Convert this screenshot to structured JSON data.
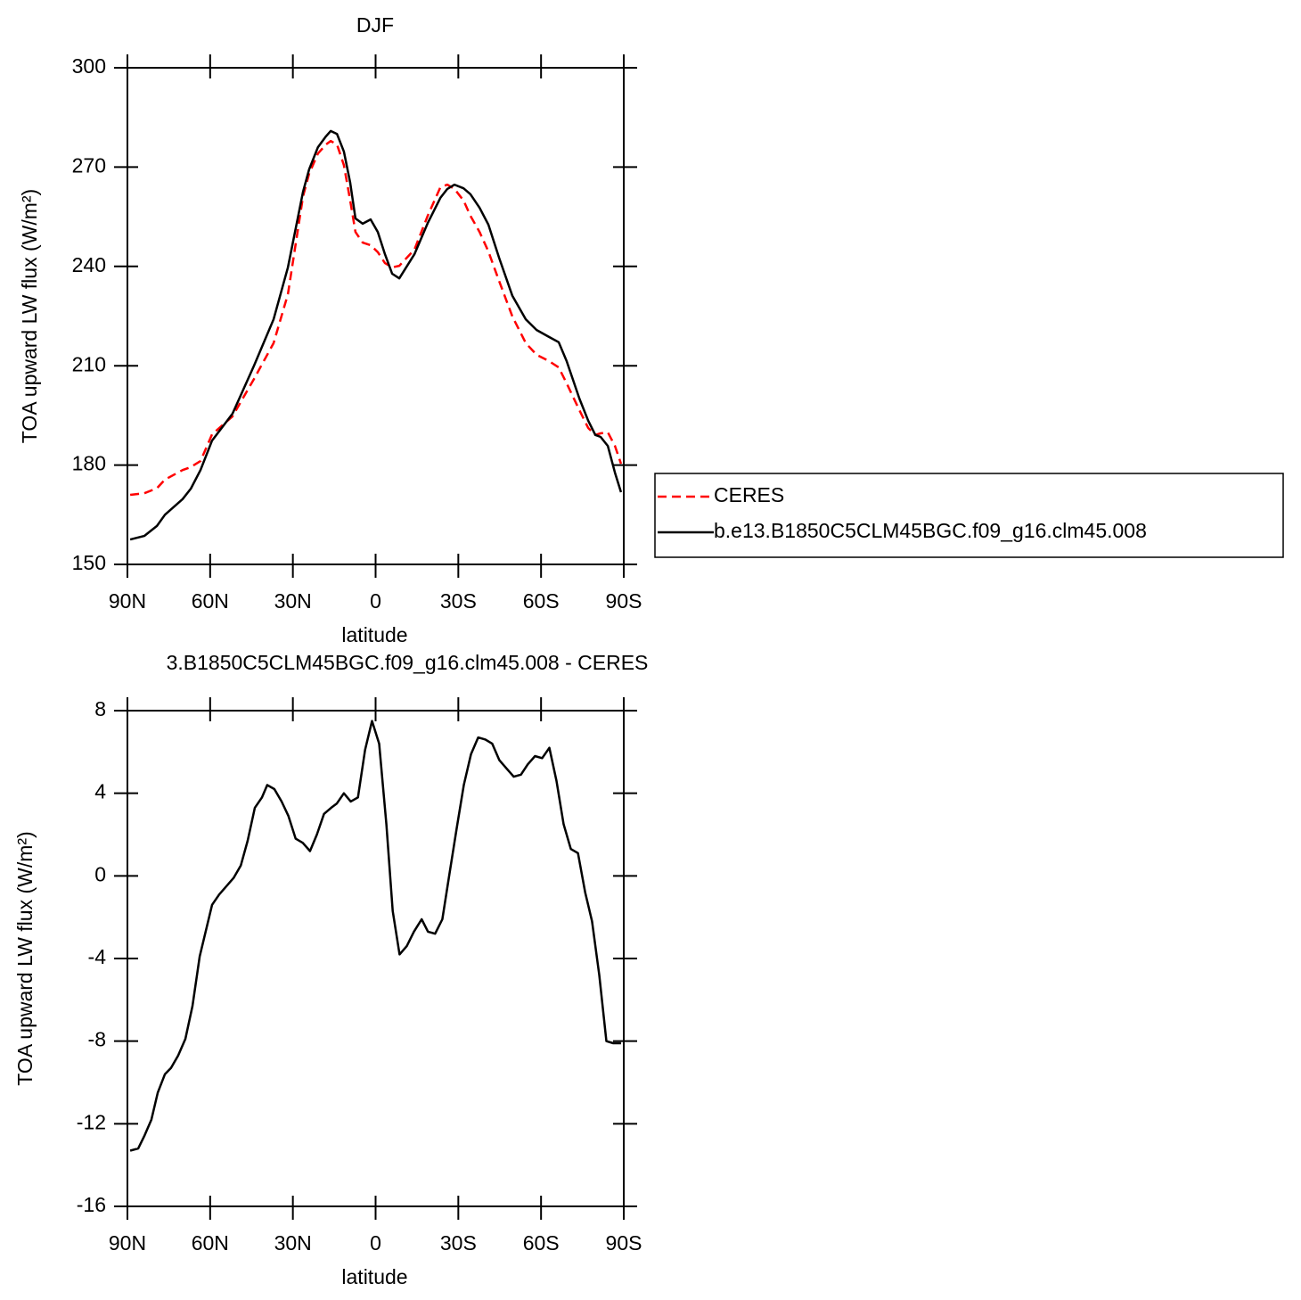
{
  "chart_data": [
    {
      "type": "line",
      "title": "DJF",
      "xlabel": "latitude",
      "ylabel": "TOA upward LW flux (W/m²)",
      "x": [
        89,
        83.9,
        79.3,
        76.4,
        70,
        67,
        63.5,
        59.3,
        51.9,
        44.1,
        37,
        31.8,
        26.3,
        24.1,
        20.9,
        18,
        16.3,
        14,
        11.5,
        9.2,
        7.3,
        4.7,
        1.8,
        -0.8,
        -3.4,
        -6,
        -8.6,
        -14.1,
        -18.9,
        -23.5,
        -26,
        -28.6,
        -31.9,
        -34.4,
        -37.7,
        -40.9,
        -44.8,
        -49.6,
        -54.5,
        -58.4,
        -62.9,
        -66.4,
        -69.3,
        -73.9,
        -77.1,
        -79.7,
        -81.6,
        -84.2,
        -86.8,
        -89
      ],
      "series": [
        {
          "name": "CERES",
          "color": "#ff0000",
          "line_style": "dashed",
          "values": [
            171,
            171.5,
            173,
            175.6,
            178.5,
            179.4,
            181.2,
            189.3,
            194.7,
            206,
            216.8,
            231.6,
            261.2,
            268,
            274.1,
            276.8,
            277.9,
            276.8,
            270.6,
            259.9,
            250.4,
            247.2,
            246.4,
            244.3,
            241,
            239.7,
            240.2,
            245.1,
            255.3,
            263.9,
            264.7,
            263.4,
            259.9,
            255.3,
            250.4,
            244.5,
            235.6,
            224.9,
            216.8,
            213.3,
            211.4,
            209.5,
            204.7,
            196.6,
            191.2,
            189.1,
            189.6,
            189.9,
            185.8,
            180.4
          ]
        },
        {
          "name": "b.e13.B1850C5CLM45BGC.f09_g16.clm45.008",
          "color": "#000000",
          "line_style": "solid",
          "values": [
            157.5,
            158.6,
            161.6,
            165,
            169.7,
            172.9,
            178.5,
            187.4,
            195.5,
            210,
            224,
            239.7,
            262.6,
            269.3,
            276,
            279.3,
            280.9,
            280,
            274.7,
            265.3,
            254.5,
            252.9,
            254.2,
            250.4,
            243.7,
            237.8,
            236.4,
            243.7,
            253.1,
            260.7,
            263.4,
            264.7,
            263.6,
            261.8,
            257.7,
            252.6,
            242.6,
            231.1,
            224,
            220.8,
            218.7,
            217.1,
            211.4,
            200.1,
            193.4,
            189.1,
            188.5,
            185.8,
            177.7,
            171.8
          ]
        }
      ],
      "xlim": [
        90,
        -90
      ],
      "xticks": [
        {
          "value": 90,
          "label": "90N"
        },
        {
          "value": 60,
          "label": "60N"
        },
        {
          "value": 30,
          "label": "30N"
        },
        0,
        {
          "value": -30,
          "label": "30S"
        },
        {
          "value": -60,
          "label": "60S"
        },
        {
          "value": -90,
          "label": "90S"
        }
      ],
      "ylim": [
        150,
        300
      ],
      "yticks": [
        150,
        180,
        210,
        240,
        270,
        300
      ],
      "legend": "right"
    },
    {
      "type": "line",
      "title": "3.B1850C5CLM45BGC.f09_g16.clm45.008 - CERES",
      "xlabel": "latitude",
      "ylabel": "TOA upward LW flux (W/m²)",
      "x": [
        89,
        86.1,
        83.9,
        81.3,
        79,
        76.4,
        74.2,
        71.6,
        69,
        66.4,
        63.8,
        59.3,
        56.7,
        51.5,
        48.9,
        46.4,
        43.8,
        41.2,
        39.3,
        36.7,
        34.1,
        31.6,
        29,
        26.4,
        23.8,
        21.3,
        18.7,
        16.1,
        14.1,
        11.5,
        9,
        6.4,
        3.8,
        1.3,
        -1.3,
        -3.9,
        -6.2,
        -8.7,
        -11.3,
        -13.9,
        -16.7,
        -19,
        -21.6,
        -24.2,
        -26.8,
        -29.4,
        -32,
        -34.6,
        -37.2,
        -39.8,
        -42.3,
        -44.9,
        -47.5,
        -50.1,
        -52.7,
        -55.2,
        -57.8,
        -60.4,
        -63,
        -65.6,
        -68.2,
        -70.8,
        -73.4,
        -76,
        -78.5,
        -81.1,
        -83.7,
        -86.2,
        -89
      ],
      "series": [
        {
          "color": "#000000",
          "line_style": "solid",
          "values": [
            -13.3,
            -13.2,
            -12.6,
            -11.8,
            -10.5,
            -9.6,
            -9.3,
            -8.7,
            -7.9,
            -6.3,
            -3.9,
            -1.4,
            -0.9,
            -0.1,
            0.5,
            1.7,
            3.3,
            3.8,
            4.4,
            4.2,
            3.6,
            2.9,
            1.8,
            1.6,
            1.2,
            2,
            3,
            3.3,
            3.5,
            4,
            3.6,
            3.8,
            6.1,
            7.5,
            6.4,
            2.5,
            -1.7,
            -3.8,
            -3.4,
            -2.7,
            -2.1,
            -2.7,
            -2.8,
            -2.1,
            0.1,
            2.3,
            4.4,
            5.9,
            6.7,
            6.6,
            6.4,
            5.6,
            5.2,
            4.8,
            4.9,
            5.4,
            5.8,
            5.7,
            6.2,
            4.6,
            2.5,
            1.3,
            1.1,
            -0.8,
            -2.2,
            -4.8,
            -8,
            -8.1,
            -8.1
          ]
        }
      ],
      "xlim": [
        90,
        -90
      ],
      "xticks": [
        {
          "value": 90,
          "label": "90N"
        },
        {
          "value": 60,
          "label": "60N"
        },
        {
          "value": 30,
          "label": "30N"
        },
        0,
        {
          "value": -30,
          "label": "30S"
        },
        {
          "value": -60,
          "label": "60S"
        },
        {
          "value": -90,
          "label": "90S"
        }
      ],
      "ylim": [
        -16,
        8
      ],
      "yticks": [
        -16,
        -12,
        -8,
        -4,
        0,
        4,
        8
      ]
    }
  ]
}
